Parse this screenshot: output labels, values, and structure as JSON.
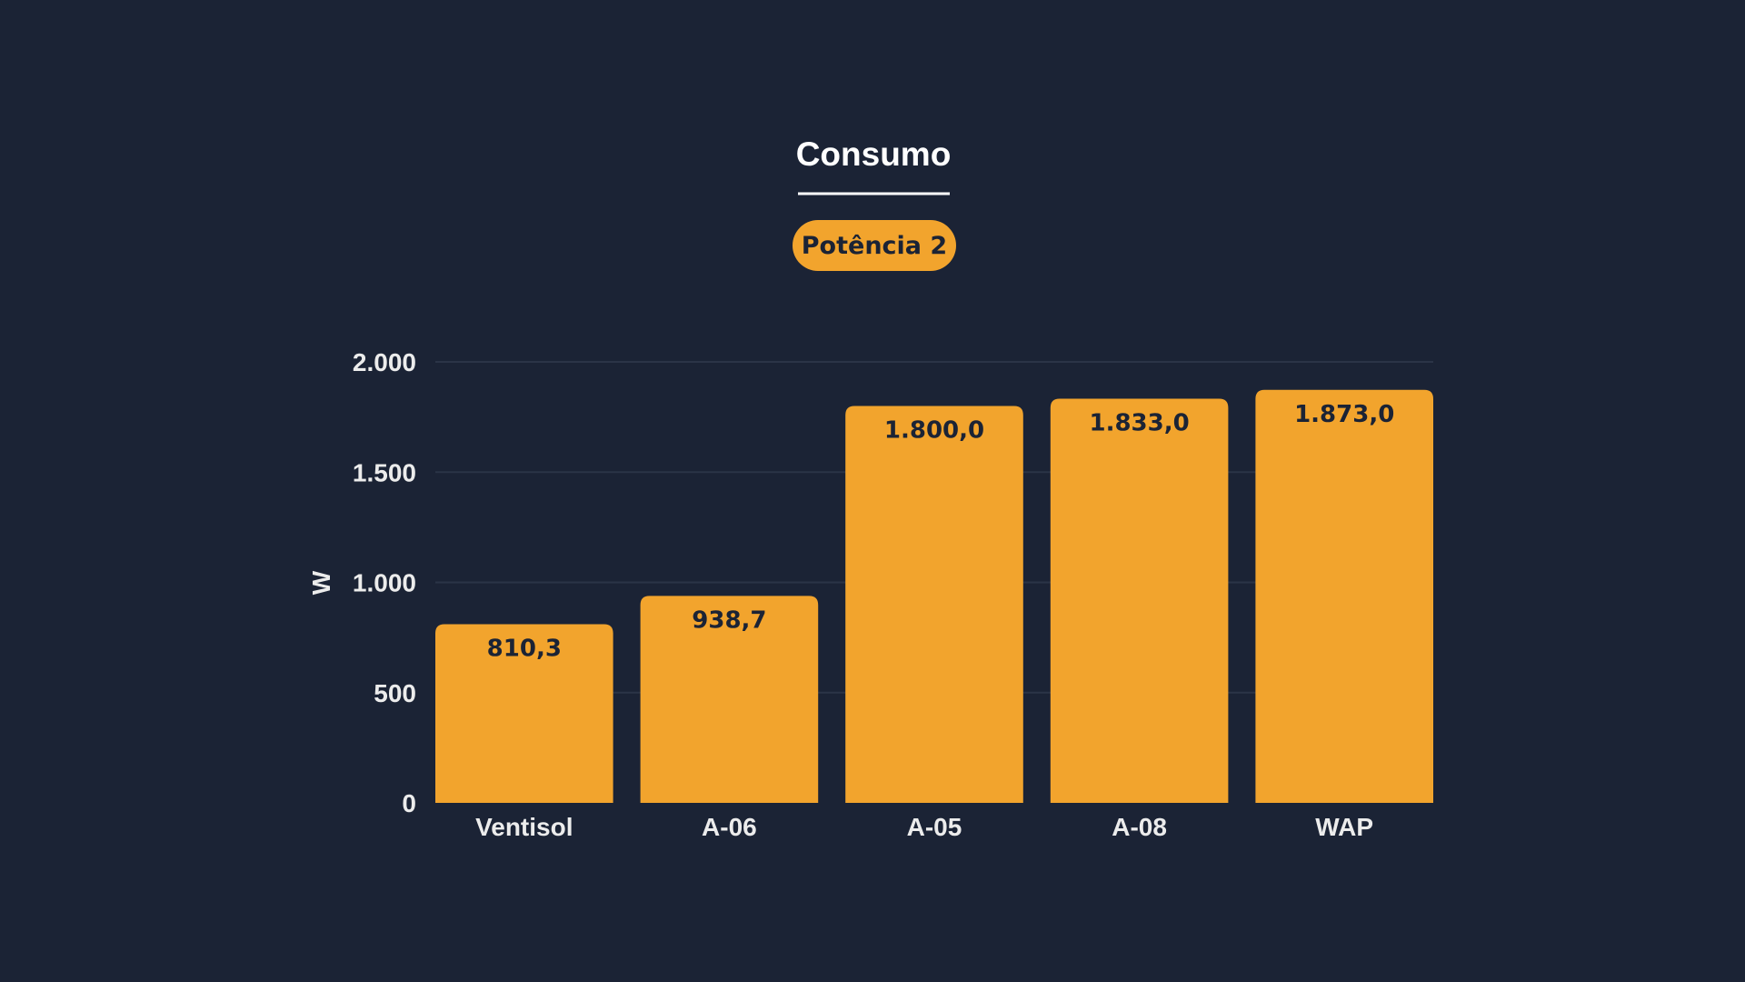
{
  "colors": {
    "background": "#1b2335",
    "bar": "#f2a42d",
    "grid": "#2b3447",
    "text": "#ececec",
    "title": "#ffffff",
    "value_text": "#1b2335"
  },
  "chart_data": {
    "type": "bar",
    "title": "Consumo",
    "subtitle": "Potência 2",
    "ylabel": "W",
    "xlabel": "",
    "ylim": [
      0,
      2000
    ],
    "yticks": [
      0,
      500,
      1000,
      1500,
      2000
    ],
    "ytick_labels": [
      "0",
      "500",
      "1.000",
      "1.500",
      "2.000"
    ],
    "grid": true,
    "legend": "none",
    "categories": [
      "Ventisol",
      "A-06",
      "A-05",
      "A-08",
      "WAP"
    ],
    "values": [
      810.3,
      938.7,
      1800.0,
      1833.0,
      1873.0
    ],
    "value_labels": [
      "810,3",
      "938,7",
      "1.800,0",
      "1.833,0",
      "1.873,0"
    ]
  }
}
